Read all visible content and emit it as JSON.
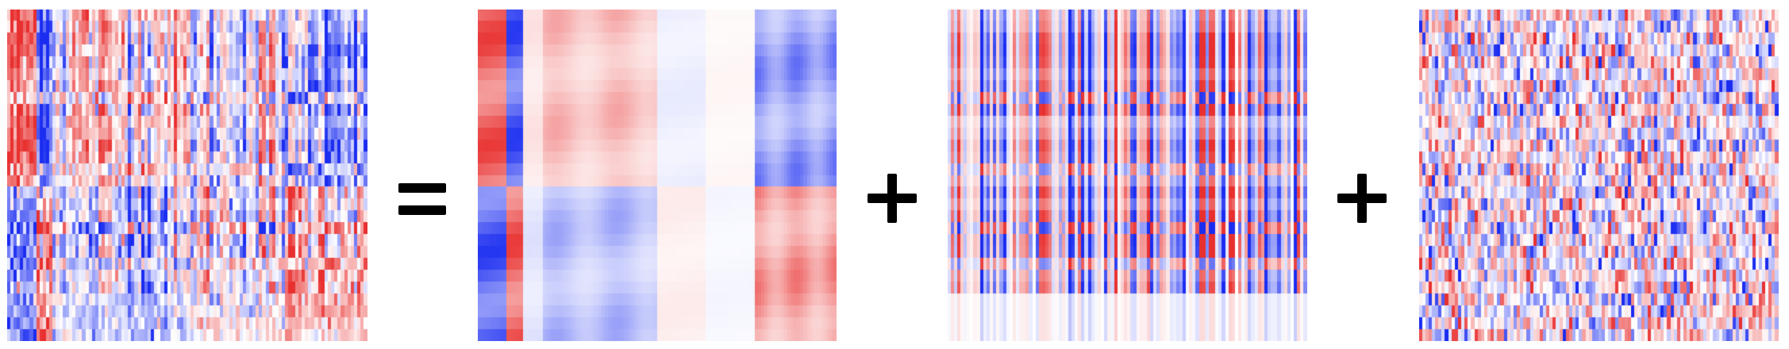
{
  "figure": {
    "colormap": {
      "negative": "#1a2cf0",
      "zero": "#ffffff",
      "positive": "#e8302f"
    },
    "panels": [
      {
        "name": "observed-matrix",
        "rows": 28,
        "cols": 110,
        "pattern": "sum"
      },
      {
        "name": "structured-component",
        "rows": 28,
        "cols": 110,
        "pattern": "block"
      },
      {
        "name": "column-effect-component",
        "rows": 28,
        "cols": 110,
        "pattern": "column"
      },
      {
        "name": "noise-component",
        "rows": 28,
        "cols": 110,
        "pattern": "noise"
      }
    ],
    "operators": [
      {
        "symbol": "=",
        "icon": "equals-icon"
      },
      {
        "symbol": "+",
        "icon": "plus-icon"
      },
      {
        "symbol": "+",
        "icon": "plus-icon"
      }
    ]
  }
}
